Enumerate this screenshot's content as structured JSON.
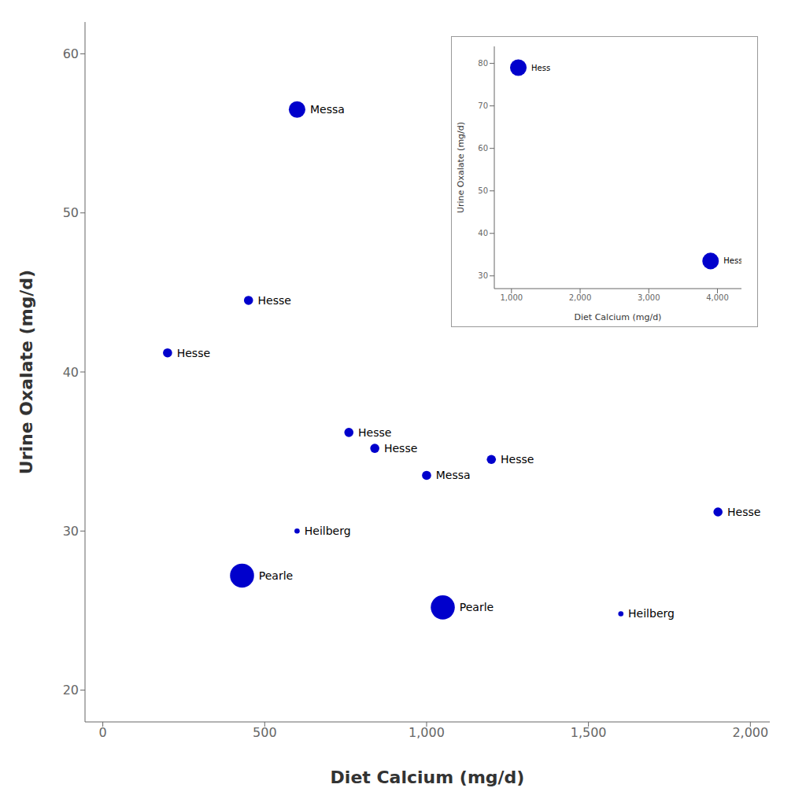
{
  "chart_data": [
    {
      "type": "scatter",
      "x": [
        600,
        450,
        200,
        760,
        840,
        1200,
        1000,
        1900,
        600,
        430,
        1050,
        1600
      ],
      "values": [
        56.5,
        44.5,
        41.2,
        36.2,
        35.2,
        34.5,
        33.5,
        31.2,
        30.0,
        27.2,
        25.2,
        24.8
      ],
      "annotations": [
        "Messa",
        "Hesse",
        "Hesse",
        "Hesse",
        "Hesse",
        "Hesse",
        "Messa",
        "Hesse",
        "Heilberg",
        "Pearle",
        "Pearle",
        "Heilberg"
      ],
      "sizes": [
        180,
        55,
        55,
        55,
        55,
        55,
        55,
        55,
        18,
        380,
        380,
        18
      ],
      "color": "#0000CC",
      "xlabel": "Diet Calcium (mg/d)",
      "ylabel": "Urine Oxalate (mg/d)",
      "xlim": [
        -55,
        2060
      ],
      "ylim": [
        18,
        62
      ],
      "xticks": [
        0,
        {
          "value": 500,
          "label": "500"
        },
        {
          "value": 1000,
          "label": "1,000"
        },
        {
          "value": 1500,
          "label": "1,500"
        },
        {
          "value": 2000,
          "label": "2,000"
        }
      ],
      "yticks": [
        20,
        30,
        40,
        50,
        60
      ],
      "grid": false
    },
    {
      "type": "scatter",
      "x": [
        1100,
        3900
      ],
      "values": [
        79,
        33.5
      ],
      "annotations": [
        "Hess",
        "Hess"
      ],
      "sizes": [
        180,
        180
      ],
      "color": "#0000CC",
      "xlabel": "Diet Calcium (mg/d)",
      "ylabel": "Urine Oxalate (mg/d)",
      "xlim": [
        750,
        4350
      ],
      "ylim": [
        27,
        84
      ],
      "xticks": [
        {
          "value": 1000,
          "label": "1,000"
        },
        {
          "value": 2000,
          "label": "2,000"
        },
        {
          "value": 3000,
          "label": "3,000"
        },
        {
          "value": 4000,
          "label": "4,000"
        }
      ],
      "yticks": [
        30,
        40,
        50,
        60,
        70,
        80
      ],
      "grid": false
    }
  ]
}
